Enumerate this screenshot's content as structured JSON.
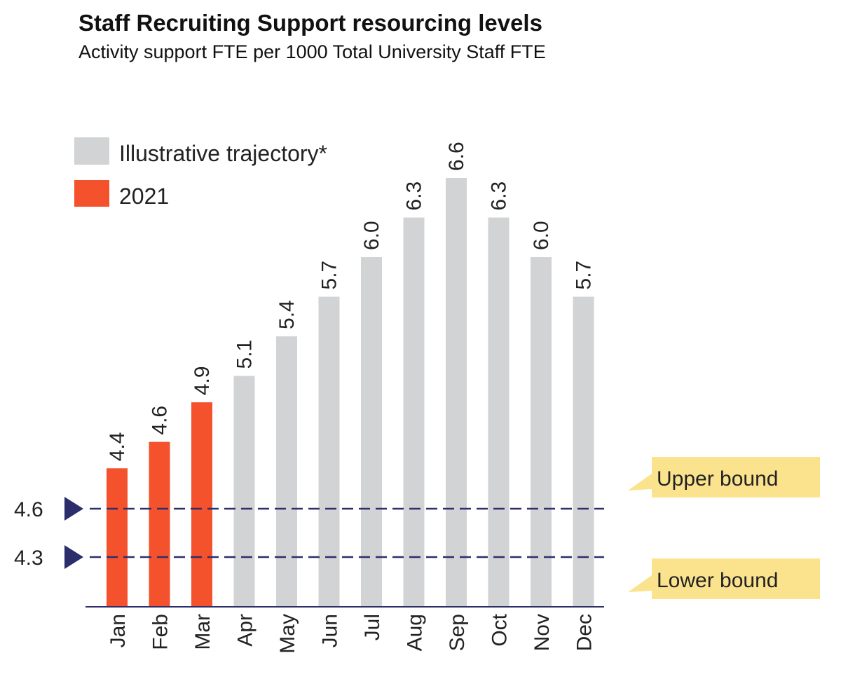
{
  "chart_data": {
    "type": "bar",
    "title": "Staff Recruiting Support resourcing levels",
    "subtitle": "Activity support FTE per 1000 Total University Staff FTE",
    "categories": [
      "Jan",
      "Feb",
      "Mar",
      "Apr",
      "May",
      "Jun",
      "Jul",
      "Aug",
      "Sep",
      "Oct",
      "Nov",
      "Dec"
    ],
    "values": [
      4.4,
      4.6,
      4.9,
      5.1,
      5.4,
      5.7,
      6.0,
      6.3,
      6.6,
      6.3,
      6.0,
      5.7
    ],
    "value_labels": [
      "4.4",
      "4.6",
      "4.9",
      "5.1",
      "5.4",
      "5.7",
      "6.0",
      "6.3",
      "6.6",
      "6.3",
      "6.0",
      "5.7"
    ],
    "series": [
      {
        "name": "2021",
        "months": [
          "Jan",
          "Feb",
          "Mar"
        ],
        "color": "#f4522d"
      },
      {
        "name": "Illustrative trajectory*",
        "months": [
          "Apr",
          "May",
          "Jun",
          "Jul",
          "Aug",
          "Sep",
          "Oct",
          "Nov",
          "Dec"
        ],
        "color": "#d2d3d5"
      }
    ],
    "reference_lines": [
      {
        "value": 4.6,
        "label": "4.6",
        "callout": "Upper bound"
      },
      {
        "value": 4.3,
        "label": "4.3",
        "callout": "Lower bound"
      }
    ],
    "legend_position": "top-left",
    "grid": false,
    "xlabel": "",
    "ylabel": "",
    "ylim": [
      3.35,
      6.6
    ],
    "colors": {
      "actual": "#f4522d",
      "trajectory": "#d2d3d5",
      "reference_line": "#2e2f6b",
      "marker": "#2b2e6b",
      "callout": "#fbe38e",
      "axis": "#2e2f6b"
    }
  }
}
